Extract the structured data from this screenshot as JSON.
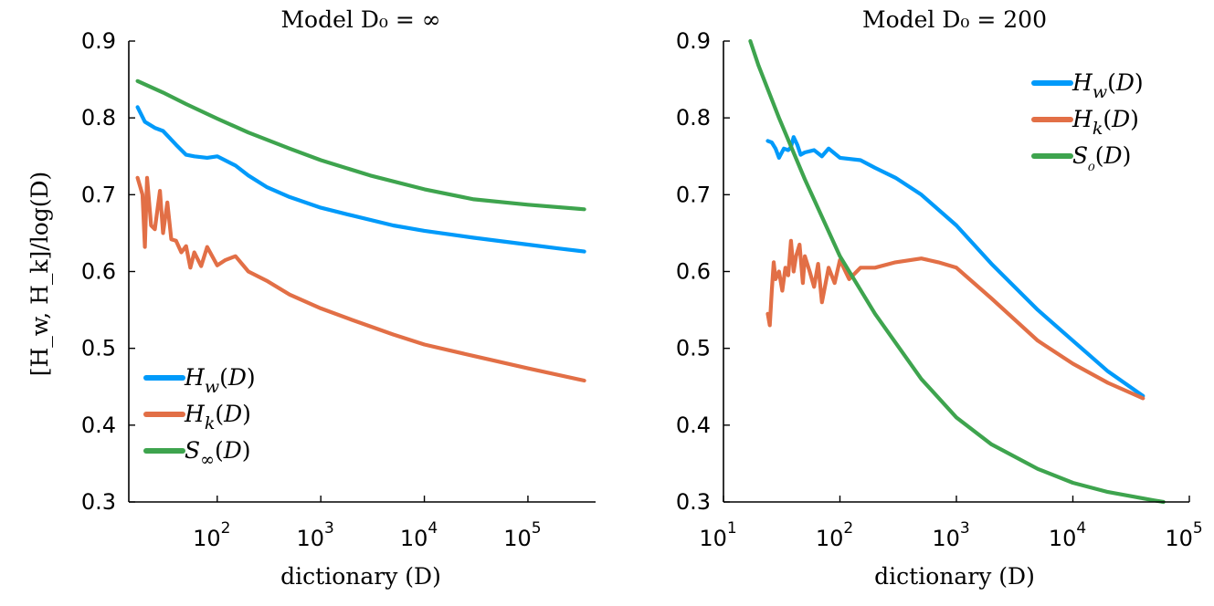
{
  "chart_data": [
    {
      "type": "line",
      "title": "Model D₀ = ∞",
      "xlabel": "dictionary (D)",
      "ylabel": "[H_w, H_k]/log(D)",
      "xscale": "log",
      "xlim": [
        14,
        450000
      ],
      "ylim": [
        0.3,
        0.9
      ],
      "x_ticks": [
        {
          "base": "10",
          "exp": "2",
          "value": 100
        },
        {
          "base": "10",
          "exp": "3",
          "value": 1000
        },
        {
          "base": "10",
          "exp": "4",
          "value": 10000
        },
        {
          "base": "10",
          "exp": "5",
          "value": 100000
        }
      ],
      "y_ticks": [
        "0.3",
        "0.4",
        "0.5",
        "0.6",
        "0.7",
        "0.8",
        "0.9"
      ],
      "legend_position": "bottom-left",
      "series": [
        {
          "name": "H_w(D)",
          "color": "#009AFA",
          "x": [
            17,
            20,
            25,
            30,
            40,
            50,
            60,
            80,
            100,
            150,
            200,
            300,
            500,
            1000,
            2000,
            5000,
            10000,
            30000,
            100000,
            200000,
            350000
          ],
          "y": [
            0.814,
            0.795,
            0.787,
            0.783,
            0.765,
            0.752,
            0.75,
            0.748,
            0.75,
            0.738,
            0.725,
            0.71,
            0.697,
            0.683,
            0.673,
            0.66,
            0.653,
            0.644,
            0.635,
            0.63,
            0.626
          ]
        },
        {
          "name": "H_k(D)",
          "color": "#E26F46",
          "x": [
            17,
            19,
            20,
            21,
            23,
            25,
            28,
            30,
            33,
            36,
            40,
            45,
            50,
            55,
            60,
            70,
            80,
            100,
            120,
            150,
            200,
            300,
            500,
            1000,
            2000,
            5000,
            10000,
            30000,
            100000,
            350000
          ],
          "y": [
            0.722,
            0.7,
            0.632,
            0.722,
            0.66,
            0.655,
            0.705,
            0.65,
            0.69,
            0.642,
            0.64,
            0.625,
            0.633,
            0.605,
            0.625,
            0.607,
            0.632,
            0.608,
            0.615,
            0.62,
            0.6,
            0.588,
            0.57,
            0.552,
            0.537,
            0.518,
            0.505,
            0.49,
            0.474,
            0.458
          ]
        },
        {
          "name": "S∞(D)",
          "color": "#3EA44E",
          "x": [
            17,
            30,
            50,
            100,
            200,
            500,
            1000,
            3000,
            10000,
            30000,
            100000,
            350000
          ],
          "y": [
            0.848,
            0.833,
            0.818,
            0.799,
            0.781,
            0.76,
            0.745,
            0.725,
            0.707,
            0.694,
            0.687,
            0.681
          ]
        }
      ]
    },
    {
      "type": "line",
      "title": "Model D₀ = 200",
      "xlabel": "dictionary (D)",
      "ylabel": "",
      "xscale": "log",
      "xlim": [
        10,
        100000
      ],
      "ylim": [
        0.3,
        0.9
      ],
      "x_ticks": [
        {
          "base": "10",
          "exp": "1",
          "value": 10
        },
        {
          "base": "10",
          "exp": "2",
          "value": 100
        },
        {
          "base": "10",
          "exp": "3",
          "value": 1000
        },
        {
          "base": "10",
          "exp": "4",
          "value": 10000
        },
        {
          "base": "10",
          "exp": "5",
          "value": 100000
        }
      ],
      "y_ticks": [
        "0.3",
        "0.4",
        "0.5",
        "0.6",
        "0.7",
        "0.8",
        "0.9"
      ],
      "legend_position": "top-right",
      "series": [
        {
          "name": "H_w(D)",
          "color": "#009AFA",
          "x": [
            24,
            26,
            28,
            30,
            33,
            36,
            38,
            40,
            43,
            46,
            50,
            60,
            70,
            80,
            100,
            150,
            200,
            300,
            500,
            1000,
            2000,
            5000,
            10000,
            20000,
            40000
          ],
          "y": [
            0.77,
            0.768,
            0.76,
            0.748,
            0.76,
            0.758,
            0.762,
            0.775,
            0.765,
            0.752,
            0.755,
            0.758,
            0.75,
            0.76,
            0.748,
            0.745,
            0.735,
            0.722,
            0.7,
            0.66,
            0.61,
            0.55,
            0.51,
            0.47,
            0.438
          ]
        },
        {
          "name": "H_k(D)",
          "color": "#E26F46",
          "x": [
            24,
            25,
            26,
            27,
            28,
            30,
            32,
            34,
            36,
            38,
            40,
            42,
            45,
            48,
            50,
            55,
            60,
            65,
            70,
            80,
            90,
            100,
            120,
            150,
            200,
            300,
            500,
            700,
            1000,
            2000,
            5000,
            10000,
            20000,
            40000
          ],
          "y": [
            0.545,
            0.53,
            0.575,
            0.612,
            0.59,
            0.6,
            0.575,
            0.605,
            0.595,
            0.64,
            0.6,
            0.62,
            0.635,
            0.585,
            0.62,
            0.6,
            0.58,
            0.61,
            0.56,
            0.605,
            0.585,
            0.615,
            0.59,
            0.605,
            0.605,
            0.612,
            0.617,
            0.612,
            0.605,
            0.565,
            0.51,
            0.48,
            0.455,
            0.435
          ]
        },
        {
          "name": "S₀(D)",
          "color": "#3EA44E",
          "x": [
            17,
            20,
            30,
            50,
            100,
            200,
            500,
            1000,
            2000,
            5000,
            10000,
            20000,
            50000,
            60000
          ],
          "y": [
            0.9,
            0.868,
            0.8,
            0.72,
            0.62,
            0.545,
            0.46,
            0.41,
            0.375,
            0.343,
            0.325,
            0.313,
            0.302,
            0.3
          ]
        }
      ]
    }
  ]
}
